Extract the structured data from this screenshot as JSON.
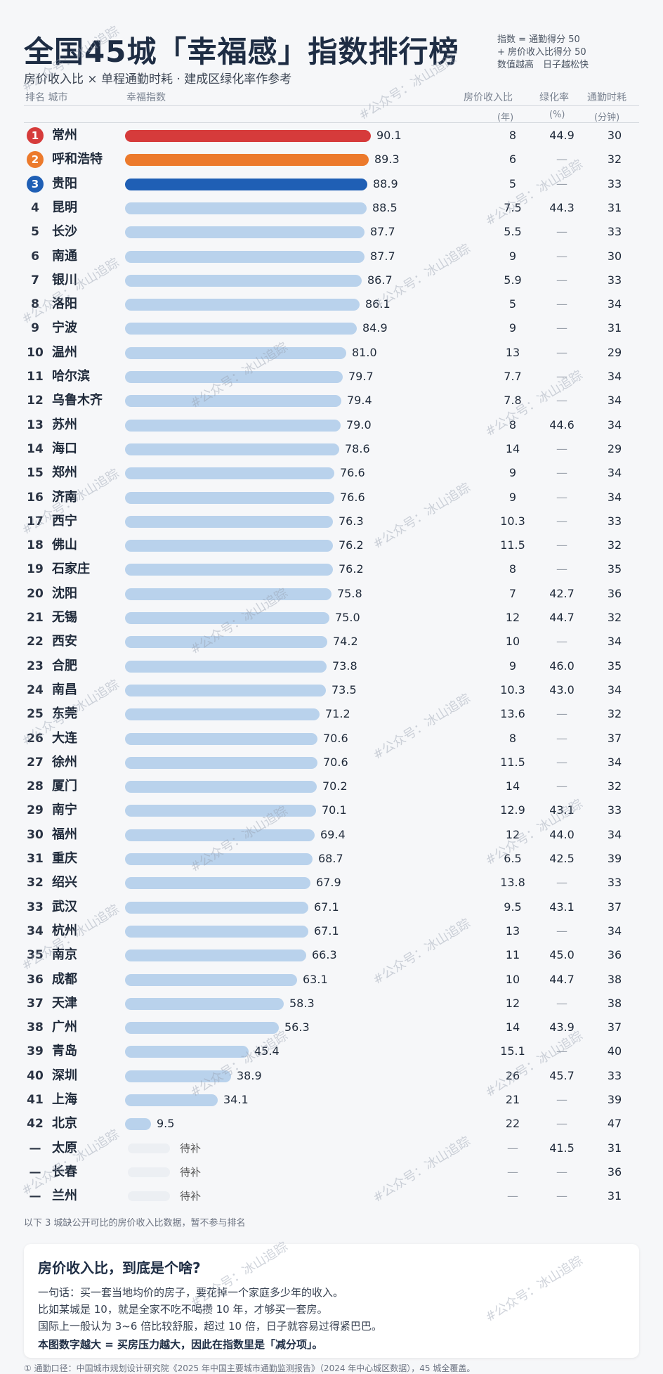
{
  "header": {
    "title": "全国45城「幸福感」指数排行榜",
    "subtitle": "房价收入比 × 单程通勤时耗 · 建成区绿化率作参考",
    "note_lines": [
      "指数 = 通勤得分 50",
      "+ 房价收入比得分 50",
      "数值越高　日子越松快"
    ]
  },
  "columns": {
    "rank_city": "排名 城市",
    "index": "幸福指数",
    "ratio": "房价收入比",
    "green": "绿化率",
    "commute": "通勤时耗",
    "ratio_unit": "(年)",
    "green_unit": "(%)",
    "commute_unit": "(分钟)"
  },
  "colors": {
    "first": "#d63b3b",
    "second": "#ec7a2c",
    "third": "#1f5fb5",
    "default": "#b9d2ec"
  },
  "chart_data": {
    "type": "bar",
    "orientation": "horizontal",
    "index_range": [
      0,
      90.1
    ],
    "rows": [
      {
        "rank": "1",
        "city": "常州",
        "index": 90.1,
        "ratio": "8",
        "green": "44.9",
        "commute": "30"
      },
      {
        "rank": "2",
        "city": "呼和浩特",
        "index": 89.3,
        "ratio": "6",
        "green": "—",
        "commute": "32"
      },
      {
        "rank": "3",
        "city": "贵阳",
        "index": 88.9,
        "ratio": "5",
        "green": "—",
        "commute": "33"
      },
      {
        "rank": "4",
        "city": "昆明",
        "index": 88.5,
        "ratio": "7.5",
        "green": "44.3",
        "commute": "31"
      },
      {
        "rank": "5",
        "city": "长沙",
        "index": 87.7,
        "ratio": "5.5",
        "green": "—",
        "commute": "33"
      },
      {
        "rank": "6",
        "city": "南通",
        "index": 87.7,
        "ratio": "9",
        "green": "—",
        "commute": "30"
      },
      {
        "rank": "7",
        "city": "银川",
        "index": 86.7,
        "ratio": "5.9",
        "green": "—",
        "commute": "33"
      },
      {
        "rank": "8",
        "city": "洛阳",
        "index": 86.1,
        "ratio": "5",
        "green": "—",
        "commute": "34"
      },
      {
        "rank": "9",
        "city": "宁波",
        "index": 84.9,
        "ratio": "9",
        "green": "—",
        "commute": "31"
      },
      {
        "rank": "10",
        "city": "温州",
        "index": 81.0,
        "ratio": "13",
        "green": "—",
        "commute": "29"
      },
      {
        "rank": "11",
        "city": "哈尔滨",
        "index": 79.7,
        "ratio": "7.7",
        "green": "—",
        "commute": "34"
      },
      {
        "rank": "12",
        "city": "乌鲁木齐",
        "index": 79.4,
        "ratio": "7.8",
        "green": "—",
        "commute": "34"
      },
      {
        "rank": "13",
        "city": "苏州",
        "index": 79.0,
        "ratio": "8",
        "green": "44.6",
        "commute": "34"
      },
      {
        "rank": "14",
        "city": "海口",
        "index": 78.6,
        "ratio": "14",
        "green": "—",
        "commute": "29"
      },
      {
        "rank": "15",
        "city": "郑州",
        "index": 76.6,
        "ratio": "9",
        "green": "—",
        "commute": "34"
      },
      {
        "rank": "16",
        "city": "济南",
        "index": 76.6,
        "ratio": "9",
        "green": "—",
        "commute": "34"
      },
      {
        "rank": "17",
        "city": "西宁",
        "index": 76.3,
        "ratio": "10.3",
        "green": "—",
        "commute": "33"
      },
      {
        "rank": "18",
        "city": "佛山",
        "index": 76.2,
        "ratio": "11.5",
        "green": "—",
        "commute": "32"
      },
      {
        "rank": "19",
        "city": "石家庄",
        "index": 76.2,
        "ratio": "8",
        "green": "—",
        "commute": "35"
      },
      {
        "rank": "20",
        "city": "沈阳",
        "index": 75.8,
        "ratio": "7",
        "green": "42.7",
        "commute": "36"
      },
      {
        "rank": "21",
        "city": "无锡",
        "index": 75.0,
        "ratio": "12",
        "green": "44.7",
        "commute": "32"
      },
      {
        "rank": "22",
        "city": "西安",
        "index": 74.2,
        "ratio": "10",
        "green": "—",
        "commute": "34"
      },
      {
        "rank": "23",
        "city": "合肥",
        "index": 73.8,
        "ratio": "9",
        "green": "46.0",
        "commute": "35"
      },
      {
        "rank": "24",
        "city": "南昌",
        "index": 73.5,
        "ratio": "10.3",
        "green": "43.0",
        "commute": "34"
      },
      {
        "rank": "25",
        "city": "东莞",
        "index": 71.2,
        "ratio": "13.6",
        "green": "—",
        "commute": "32"
      },
      {
        "rank": "26",
        "city": "大连",
        "index": 70.6,
        "ratio": "8",
        "green": "—",
        "commute": "37"
      },
      {
        "rank": "27",
        "city": "徐州",
        "index": 70.6,
        "ratio": "11.5",
        "green": "—",
        "commute": "34"
      },
      {
        "rank": "28",
        "city": "厦门",
        "index": 70.2,
        "ratio": "14",
        "green": "—",
        "commute": "32"
      },
      {
        "rank": "29",
        "city": "南宁",
        "index": 70.1,
        "ratio": "12.9",
        "green": "43.1",
        "commute": "33"
      },
      {
        "rank": "30",
        "city": "福州",
        "index": 69.4,
        "ratio": "12",
        "green": "44.0",
        "commute": "34"
      },
      {
        "rank": "31",
        "city": "重庆",
        "index": 68.7,
        "ratio": "6.5",
        "green": "42.5",
        "commute": "39"
      },
      {
        "rank": "32",
        "city": "绍兴",
        "index": 67.9,
        "ratio": "13.8",
        "green": "—",
        "commute": "33"
      },
      {
        "rank": "33",
        "city": "武汉",
        "index": 67.1,
        "ratio": "9.5",
        "green": "43.1",
        "commute": "37"
      },
      {
        "rank": "34",
        "city": "杭州",
        "index": 67.1,
        "ratio": "13",
        "green": "—",
        "commute": "34"
      },
      {
        "rank": "35",
        "city": "南京",
        "index": 66.3,
        "ratio": "11",
        "green": "45.0",
        "commute": "36"
      },
      {
        "rank": "36",
        "city": "成都",
        "index": 63.1,
        "ratio": "10",
        "green": "44.7",
        "commute": "38"
      },
      {
        "rank": "37",
        "city": "天津",
        "index": 58.3,
        "ratio": "12",
        "green": "—",
        "commute": "38"
      },
      {
        "rank": "38",
        "city": "广州",
        "index": 56.3,
        "ratio": "14",
        "green": "43.9",
        "commute": "37"
      },
      {
        "rank": "39",
        "city": "青岛",
        "index": 45.4,
        "ratio": "15.1",
        "green": "—",
        "commute": "40"
      },
      {
        "rank": "40",
        "city": "深圳",
        "index": 38.9,
        "ratio": "26",
        "green": "45.7",
        "commute": "33"
      },
      {
        "rank": "41",
        "city": "上海",
        "index": 34.1,
        "ratio": "21",
        "green": "—",
        "commute": "39"
      },
      {
        "rank": "42",
        "city": "北京",
        "index": 9.5,
        "ratio": "22",
        "green": "—",
        "commute": "47"
      },
      {
        "rank": "—",
        "city": "太原",
        "index": null,
        "pending": "待补",
        "ratio": "—",
        "green": "41.5",
        "commute": "31"
      },
      {
        "rank": "—",
        "city": "长春",
        "index": null,
        "pending": "待补",
        "ratio": "—",
        "green": "—",
        "commute": "36"
      },
      {
        "rank": "—",
        "city": "兰州",
        "index": null,
        "pending": "待补",
        "ratio": "—",
        "green": "—",
        "commute": "31"
      }
    ]
  },
  "footnote": "以下 3 城缺公开可比的房价收入比数据，暂不参与排名",
  "explainer": {
    "title": "房价收入比，到底是个啥?",
    "lines": [
      "一句话：买一套当地均价的房子，要花掉一个家庭多少年的收入。",
      "比如某城是 10，就是全家不吃不喝攒 10 年，才够买一套房。",
      "国际上一般认为 3~6 倍比较舒服，超过 10 倍，日子就容易过得紧巴巴。",
      "本图数字越大 = 买房压力越大，因此在指数里是「减分项」。"
    ]
  },
  "source": "① 通勤口径：中国城市规划设计研究院《2025 年中国主要城市通勤监测报告》（2024 年中心城区数据），45 城全覆盖。",
  "watermark": "#公众号：冰山追踪"
}
